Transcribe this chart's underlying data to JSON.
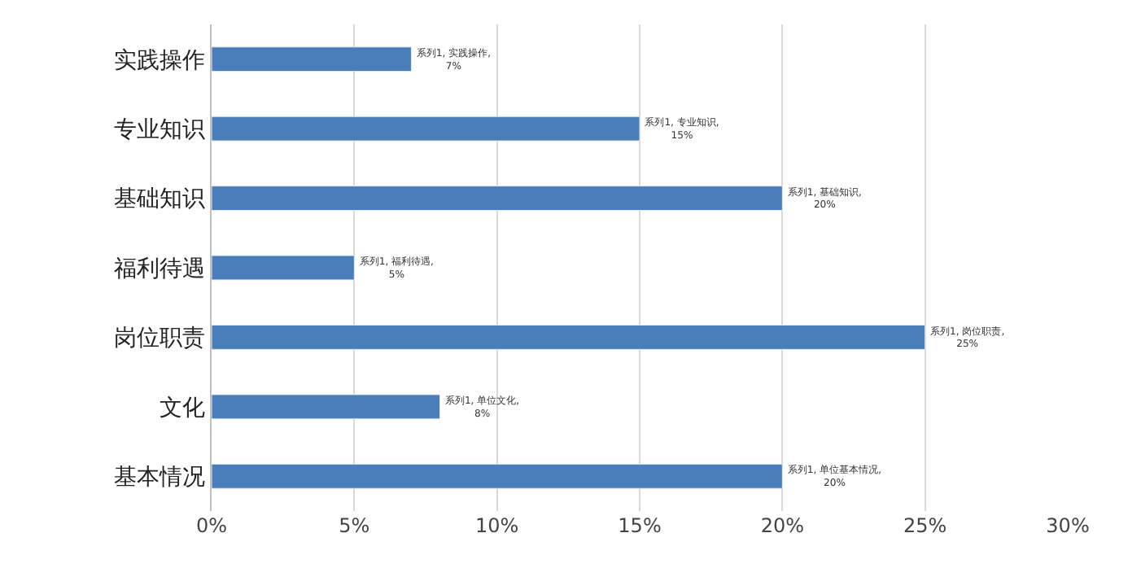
{
  "chart_data": {
    "type": "bar",
    "orientation": "horizontal",
    "categories": [
      "实践操作",
      "专业知识",
      "基础知识",
      "福利待遇",
      "岗位职责",
      "文化",
      "基本情况"
    ],
    "values": [
      7,
      15,
      20,
      5,
      25,
      8,
      20
    ],
    "color": "#4a7ebb",
    "value_labels": [
      "系列1, 实践操作, 7%",
      "系列1, 专业知识, 15%",
      "系列1, 基础知识, 20%",
      "系列1, 福利待遇, 5%",
      "系列1, 岗位职责, 25%",
      "系列1, 单位文化, 8%",
      "系列1, 单位基本情况, 20%"
    ],
    "xlim": [
      0,
      30
    ],
    "xticks": [
      {
        "value": 0,
        "label": "0%"
      },
      {
        "value": 5,
        "label": "5%"
      },
      {
        "value": 10,
        "label": "10%"
      },
      {
        "value": 15,
        "label": "15%"
      },
      {
        "value": 20,
        "label": "20%"
      },
      {
        "value": 25,
        "label": "25%"
      },
      {
        "value": 30,
        "label": "30%"
      }
    ],
    "grid": "x"
  }
}
